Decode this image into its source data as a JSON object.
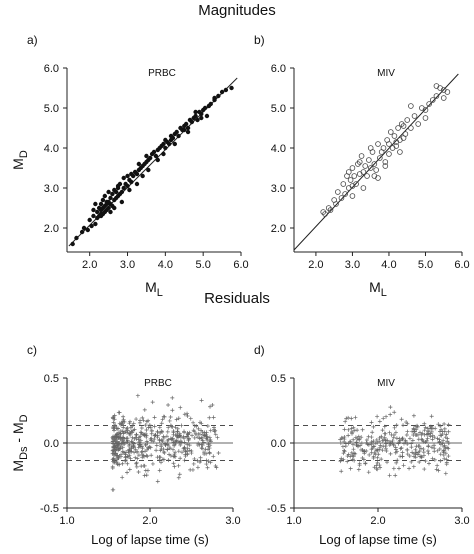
{
  "figure": {
    "section_top": "Magnitudes",
    "section_bottom": "Residuals"
  },
  "chart_data": [
    {
      "type": "scatter",
      "panel_label": "a)",
      "station": "PRBC",
      "marker": "filled-dot",
      "xlabel": "M",
      "xlabel_sub": "L",
      "ylabel": "M",
      "ylabel_sub": "D",
      "xlim": [
        1.4,
        6.0
      ],
      "ylim": [
        1.4,
        6.0
      ],
      "xticks": [
        "2.0",
        "3.0",
        "4.0",
        "5.0",
        "6.0"
      ],
      "yticks": [
        "2.0",
        "3.0",
        "4.0",
        "5.0",
        "6.0"
      ],
      "fit_line": {
        "x": [
          1.45,
          5.9
        ],
        "y": [
          1.55,
          5.75
        ]
      },
      "points": {
        "x": [
          1.55,
          1.65,
          1.8,
          1.85,
          1.95,
          2.0,
          2.05,
          2.1,
          2.15,
          2.15,
          2.2,
          2.2,
          2.25,
          2.25,
          2.3,
          2.3,
          2.3,
          2.35,
          2.35,
          2.4,
          2.4,
          2.4,
          2.45,
          2.45,
          2.5,
          2.5,
          2.5,
          2.55,
          2.55,
          2.6,
          2.6,
          2.65,
          2.65,
          2.7,
          2.7,
          2.75,
          2.75,
          2.8,
          2.8,
          2.85,
          2.9,
          2.9,
          2.95,
          3.0,
          3.0,
          3.05,
          3.1,
          3.1,
          3.15,
          3.2,
          3.25,
          3.3,
          3.3,
          3.35,
          3.4,
          3.45,
          3.5,
          3.5,
          3.55,
          3.6,
          3.65,
          3.7,
          3.75,
          3.8,
          3.85,
          3.9,
          3.95,
          4.0,
          4.0,
          4.05,
          4.1,
          4.15,
          4.2,
          4.25,
          4.3,
          4.35,
          4.4,
          4.45,
          4.5,
          4.55,
          4.6,
          4.65,
          4.7,
          4.75,
          4.8,
          4.85,
          4.9,
          4.95,
          5.0,
          5.05,
          5.1,
          5.2,
          5.3,
          5.4,
          5.5,
          5.6,
          5.75,
          2.1,
          2.35,
          2.55,
          2.85,
          3.25,
          3.55,
          3.95,
          4.25,
          4.6,
          4.95,
          5.15,
          2.3,
          2.45,
          2.65,
          2.75,
          3.05,
          3.4,
          3.8,
          4.15,
          4.5,
          4.8,
          5.3
        ],
        "y": [
          1.6,
          1.75,
          1.9,
          2.0,
          1.95,
          2.2,
          2.05,
          2.3,
          2.6,
          2.1,
          2.4,
          2.25,
          2.5,
          2.3,
          2.45,
          2.35,
          2.6,
          2.5,
          2.7,
          2.4,
          2.55,
          2.8,
          2.45,
          2.6,
          2.5,
          2.65,
          2.9,
          2.6,
          2.75,
          2.55,
          2.85,
          2.7,
          2.95,
          2.75,
          2.9,
          2.8,
          3.05,
          2.85,
          3.1,
          2.9,
          3.0,
          3.25,
          3.1,
          3.05,
          3.3,
          3.2,
          3.15,
          3.35,
          3.3,
          3.4,
          3.35,
          3.45,
          3.6,
          3.5,
          3.55,
          3.6,
          3.65,
          3.8,
          3.7,
          3.75,
          3.85,
          3.9,
          3.8,
          3.95,
          4.0,
          4.05,
          4.1,
          4.0,
          4.2,
          4.15,
          4.1,
          4.3,
          4.25,
          4.35,
          4.4,
          4.3,
          4.5,
          4.45,
          4.55,
          4.6,
          4.5,
          4.7,
          4.65,
          4.75,
          4.8,
          4.7,
          4.9,
          4.85,
          4.95,
          5.0,
          4.8,
          5.1,
          5.2,
          5.3,
          5.4,
          5.45,
          5.5,
          2.45,
          2.35,
          2.4,
          2.65,
          3.1,
          3.45,
          3.85,
          4.1,
          4.4,
          4.75,
          5.05,
          2.3,
          2.65,
          2.5,
          3.0,
          2.95,
          3.3,
          3.7,
          4.2,
          4.45,
          4.9,
          5.25
        ]
      }
    },
    {
      "type": "scatter",
      "panel_label": "b)",
      "station": "MIV",
      "marker": "open-circle",
      "xlabel": "M",
      "xlabel_sub": "L",
      "ylabel": "",
      "ylabel_sub": "",
      "xlim": [
        1.4,
        6.0
      ],
      "ylim": [
        1.4,
        6.0
      ],
      "xticks": [
        "2.0",
        "3.0",
        "4.0",
        "5.0",
        "6.0"
      ],
      "yticks": [
        "2.0",
        "3.0",
        "4.0",
        "5.0",
        "6.0"
      ],
      "fit_line": {
        "x": [
          1.4,
          5.9
        ],
        "y": [
          1.45,
          5.85
        ]
      },
      "points": {
        "x": [
          2.2,
          2.25,
          2.35,
          2.4,
          2.5,
          2.55,
          2.6,
          2.7,
          2.75,
          2.8,
          2.85,
          2.9,
          2.95,
          3.0,
          3.0,
          3.05,
          3.1,
          3.15,
          3.2,
          3.25,
          3.3,
          3.35,
          3.4,
          3.45,
          3.5,
          3.55,
          3.6,
          3.65,
          3.7,
          3.75,
          3.8,
          3.85,
          3.9,
          3.95,
          4.0,
          4.05,
          4.1,
          4.15,
          4.2,
          4.25,
          4.3,
          4.35,
          4.4,
          4.45,
          4.5,
          4.6,
          4.7,
          4.8,
          4.9,
          5.0,
          5.1,
          5.2,
          5.3,
          5.4,
          5.5,
          5.6,
          3.0,
          3.3,
          3.6,
          3.9,
          4.2,
          4.4,
          2.9,
          3.2,
          3.5,
          3.7,
          4.0,
          4.3,
          4.6,
          5.0,
          5.3,
          5.5
        ],
        "y": [
          2.4,
          2.35,
          2.5,
          2.45,
          2.7,
          2.6,
          2.9,
          2.75,
          3.1,
          2.85,
          3.3,
          3.0,
          3.2,
          3.05,
          3.5,
          3.3,
          3.1,
          3.6,
          3.35,
          3.8,
          3.4,
          3.55,
          3.3,
          3.7,
          3.5,
          3.9,
          3.6,
          3.45,
          4.1,
          3.75,
          3.9,
          4.0,
          3.65,
          4.2,
          3.85,
          4.4,
          4.0,
          4.3,
          4.15,
          4.5,
          3.9,
          4.6,
          4.25,
          4.35,
          4.7,
          4.5,
          4.8,
          4.6,
          5.0,
          4.75,
          5.1,
          5.2,
          5.3,
          5.5,
          5.45,
          5.4,
          2.8,
          3.0,
          3.3,
          3.55,
          4.05,
          4.55,
          3.4,
          3.65,
          4.0,
          3.25,
          4.1,
          4.2,
          5.05,
          4.95,
          5.55,
          5.25
        ]
      }
    },
    {
      "type": "scatter",
      "panel_label": "c)",
      "station": "PRBC",
      "marker": "plus",
      "xlabel": "Log of lapse time (s)",
      "ylabel": "M",
      "ylabel_sub1": "Ds",
      "ylabel_mid": " - M",
      "ylabel_sub2": "D",
      "xlim": [
        1.0,
        3.0
      ],
      "ylim": [
        -0.5,
        0.5
      ],
      "xticks": [
        "1.0",
        "2.0",
        "3.0"
      ],
      "yticks": [
        "-0.5",
        "0.0",
        "0.5"
      ],
      "zero_line": 0.0,
      "dashed_lines": [
        0.135,
        -0.135
      ]
    },
    {
      "type": "scatter",
      "panel_label": "d)",
      "station": "MIV",
      "marker": "plus",
      "xlabel": "Log of lapse time (s)",
      "ylabel": "",
      "xlim": [
        1.0,
        3.0
      ],
      "ylim": [
        -0.5,
        0.5
      ],
      "xticks": [
        "1.0",
        "2.0",
        "3.0"
      ],
      "yticks": [
        "-0.5",
        "0.0",
        "0.5"
      ],
      "zero_line": 0.0,
      "dashed_lines": [
        0.135,
        -0.135
      ]
    }
  ]
}
